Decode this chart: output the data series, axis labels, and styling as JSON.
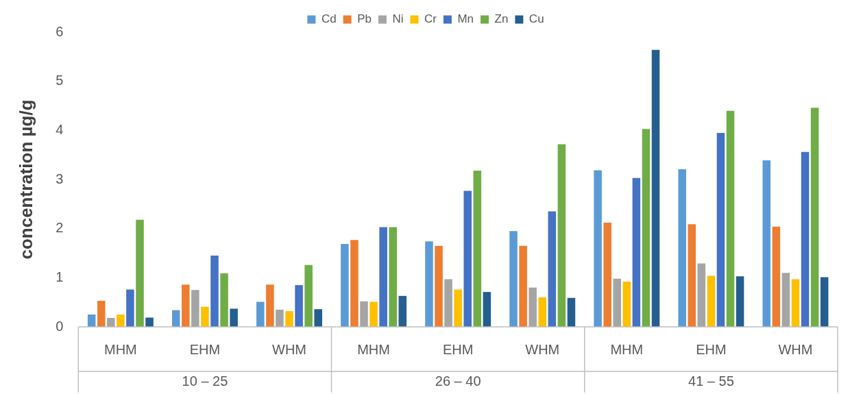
{
  "chart_data": {
    "type": "bar",
    "ylabel": "concentration µg/g",
    "categories": [
      "MHM",
      "EHM",
      "WHM",
      "MHM",
      "EHM",
      "WHM",
      "MHM",
      "EHM",
      "WHM"
    ],
    "annotations": [
      "10 – 25",
      "26 – 40",
      "41 – 55"
    ],
    "series": [
      {
        "name": "Cd",
        "color": "#5b9bd5",
        "values": [
          0.25,
          0.34,
          0.51,
          1.69,
          1.74,
          1.95,
          3.19,
          3.21,
          3.39
        ]
      },
      {
        "name": "Pb",
        "color": "#ed7d31",
        "values": [
          0.53,
          0.86,
          0.86,
          1.77,
          1.65,
          1.65,
          2.12,
          2.09,
          2.04
        ]
      },
      {
        "name": "Ni",
        "color": "#a5a5a5",
        "values": [
          0.18,
          0.75,
          0.35,
          0.52,
          0.97,
          0.8,
          0.98,
          1.29,
          1.1
        ]
      },
      {
        "name": "Cr",
        "color": "#ffc000",
        "values": [
          0.25,
          0.41,
          0.32,
          0.51,
          0.76,
          0.6,
          0.92,
          1.04,
          0.97
        ]
      },
      {
        "name": "Mn",
        "color": "#4472c4",
        "values": [
          0.76,
          1.45,
          0.85,
          2.03,
          2.77,
          2.35,
          3.03,
          3.95,
          3.56
        ]
      },
      {
        "name": "Zn",
        "color": "#70ad47",
        "values": [
          2.18,
          1.09,
          1.26,
          2.03,
          3.18,
          3.72,
          4.03,
          4.4,
          4.46
        ]
      },
      {
        "name": "Cu",
        "color": "#255e91",
        "values": [
          0.19,
          0.37,
          0.36,
          0.63,
          0.71,
          0.59,
          5.64,
          1.03,
          1.01
        ]
      }
    ],
    "ylim": [
      0,
      6
    ],
    "yticks": [
      0,
      1,
      2,
      3,
      4,
      5,
      6
    ],
    "grid": false,
    "legend": "top"
  }
}
